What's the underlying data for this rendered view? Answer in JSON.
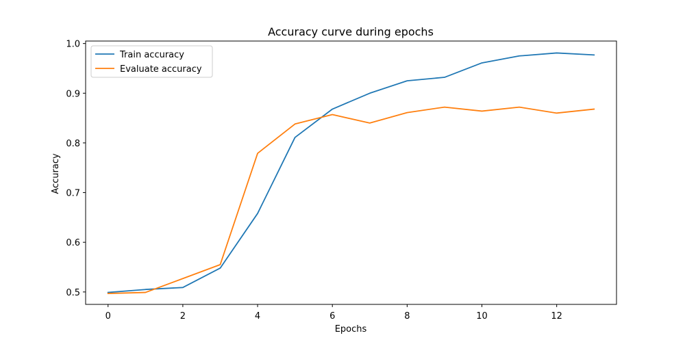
{
  "chart_data": {
    "type": "line",
    "title": "Accuracy curve during epochs",
    "xlabel": "Epochs",
    "ylabel": "Accuracy",
    "xlim": [
      -0.6,
      13.6
    ],
    "ylim": [
      0.475,
      1.005
    ],
    "xticks": [
      0,
      2,
      4,
      6,
      8,
      10,
      12
    ],
    "yticks": [
      0.5,
      0.6,
      0.7,
      0.8,
      0.9,
      1.0
    ],
    "ytick_labels": [
      "0.5",
      "0.6",
      "0.7",
      "0.8",
      "0.9",
      "1.0"
    ],
    "legend_position": "upper-left",
    "x": [
      0,
      1,
      2,
      3,
      4,
      5,
      6,
      7,
      8,
      9,
      10,
      11,
      12,
      13
    ],
    "series": [
      {
        "name": "Train accuracy",
        "color": "#1f77b4",
        "values": [
          0.499,
          0.505,
          0.509,
          0.548,
          0.658,
          0.811,
          0.868,
          0.9,
          0.925,
          0.932,
          0.961,
          0.975,
          0.981,
          0.977
        ]
      },
      {
        "name": "Evaluate accuracy",
        "color": "#ff7f0e",
        "values": [
          0.497,
          0.499,
          0.527,
          0.555,
          0.779,
          0.838,
          0.857,
          0.84,
          0.861,
          0.872,
          0.864,
          0.872,
          0.86,
          0.868
        ]
      }
    ]
  }
}
